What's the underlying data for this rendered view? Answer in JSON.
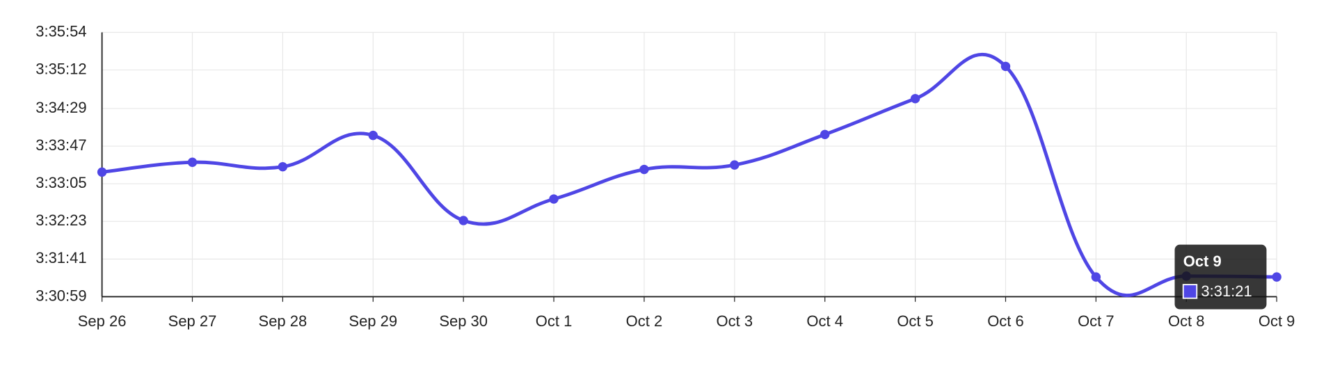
{
  "chart_data": {
    "type": "line",
    "categories": [
      "Sep 26",
      "Sep 27",
      "Sep 28",
      "Sep 29",
      "Sep 30",
      "Oct 1",
      "Oct 2",
      "Oct 3",
      "Oct 4",
      "Oct 5",
      "Oct 6",
      "Oct 7",
      "Oct 8",
      "Oct 9"
    ],
    "series": [
      {
        "color": "#4f46e5",
        "values": [
          12798,
          12809,
          12804,
          12839,
          12744,
          12768,
          12801,
          12806,
          12840,
          12880,
          12916,
          12681,
          12682,
          12681
        ],
        "value_labels": [
          null,
          null,
          null,
          null,
          null,
          null,
          null,
          null,
          null,
          null,
          null,
          null,
          null,
          "3:31:21"
        ]
      }
    ],
    "ylim": [
      12659,
      12954
    ],
    "yticks": [
      {
        "value": 12659,
        "label": "3:30:59"
      },
      {
        "value": 12701,
        "label": "3:31:41"
      },
      {
        "value": 12743,
        "label": "3:32:23"
      },
      {
        "value": 12785,
        "label": "3:33:05"
      },
      {
        "value": 12827,
        "label": "3:33:47"
      },
      {
        "value": 12869,
        "label": "3:34:29"
      },
      {
        "value": 12912,
        "label": "3:35:12"
      },
      {
        "value": 12954,
        "label": "3:35:54"
      }
    ],
    "grid": true
  }
}
